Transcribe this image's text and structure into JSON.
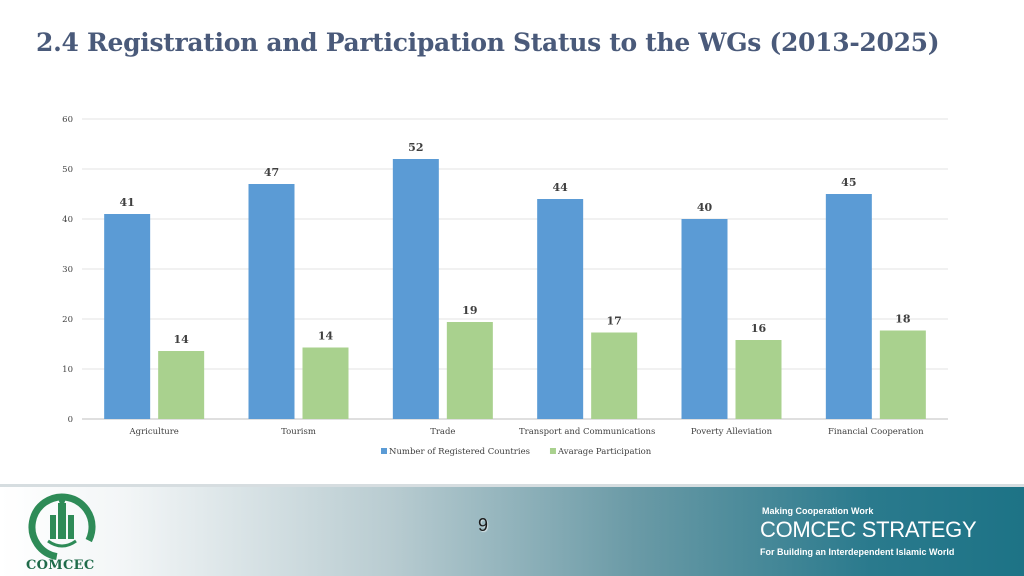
{
  "slide": {
    "title": "2.4 Registration and Participation Status to the WGs (2013-2025)"
  },
  "chart_data": {
    "type": "bar",
    "categories": [
      "Agriculture",
      "Tourism",
      "Trade",
      "Transport and Communications",
      "Poverty Alleviation",
      "Financial Cooperation"
    ],
    "series": [
      {
        "name": "Number of Registered Countries",
        "values": [
          41,
          47,
          52,
          44,
          40,
          45
        ],
        "color": "#5b9bd5",
        "labels": [
          "41",
          "47",
          "52",
          "44",
          "40",
          "45"
        ]
      },
      {
        "name": "Avarage Participation",
        "values": [
          13.6,
          14.3,
          19.4,
          17.3,
          15.8,
          17.7
        ],
        "color": "#a9d18e",
        "labels": [
          "14",
          "14",
          "19",
          "17",
          "16",
          "18"
        ]
      }
    ],
    "title": "",
    "xlabel": "",
    "ylabel": "",
    "ylim": [
      0,
      60
    ],
    "yticks": [
      "0",
      "10",
      "20",
      "30",
      "40",
      "50",
      "60"
    ],
    "grid": true,
    "legend": "bottom"
  },
  "footer": {
    "page_number": "9",
    "logo_text": "COMCEC",
    "tagline_top": "Making Cooperation Work",
    "tagline_main": "COMCEC STRATEGY",
    "tagline_bottom": "For Building an Interdependent Islamic World",
    "accent": "#1d7386"
  }
}
